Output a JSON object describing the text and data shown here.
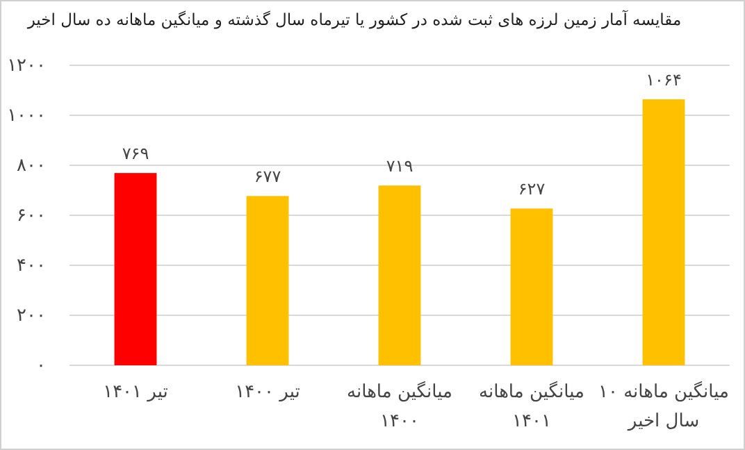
{
  "chart_data": {
    "type": "bar",
    "title": "مقایسه آمار زمین لرزه های ثبت شده در کشور یا تیرماه سال گذشته و میانگین ماهانه ده سال اخیر",
    "categories": [
      "تیر ۱۴۰۱",
      "تیر ۱۴۰۰",
      "میانگین ماهانه\n۱۴۰۰",
      "میانگین ماهانه\n۱۴۰۱",
      "میانگین ماهانه ۱۰\nسال اخیر"
    ],
    "values": [
      769,
      677,
      719,
      627,
      1064
    ],
    "colors": [
      "#ff0000",
      "#ffc000",
      "#ffc000",
      "#ffc000",
      "#ffc000"
    ],
    "value_labels": [
      "۷۶۹",
      "۶۷۷",
      "۷۱۹",
      "۶۲۷",
      "۱۰۶۴"
    ],
    "ylim": [
      0,
      1200
    ],
    "yticks": [
      {
        "value": 0,
        "label": "۰"
      },
      {
        "value": 200,
        "label": "۲۰۰"
      },
      {
        "value": 400,
        "label": "۴۰۰"
      },
      {
        "value": 600,
        "label": "۶۰۰"
      },
      {
        "value": 800,
        "label": "۸۰۰"
      },
      {
        "value": 1000,
        "label": "۱۰۰۰"
      },
      {
        "value": 1200,
        "label": "۱۲۰۰"
      }
    ],
    "grid": "y"
  }
}
